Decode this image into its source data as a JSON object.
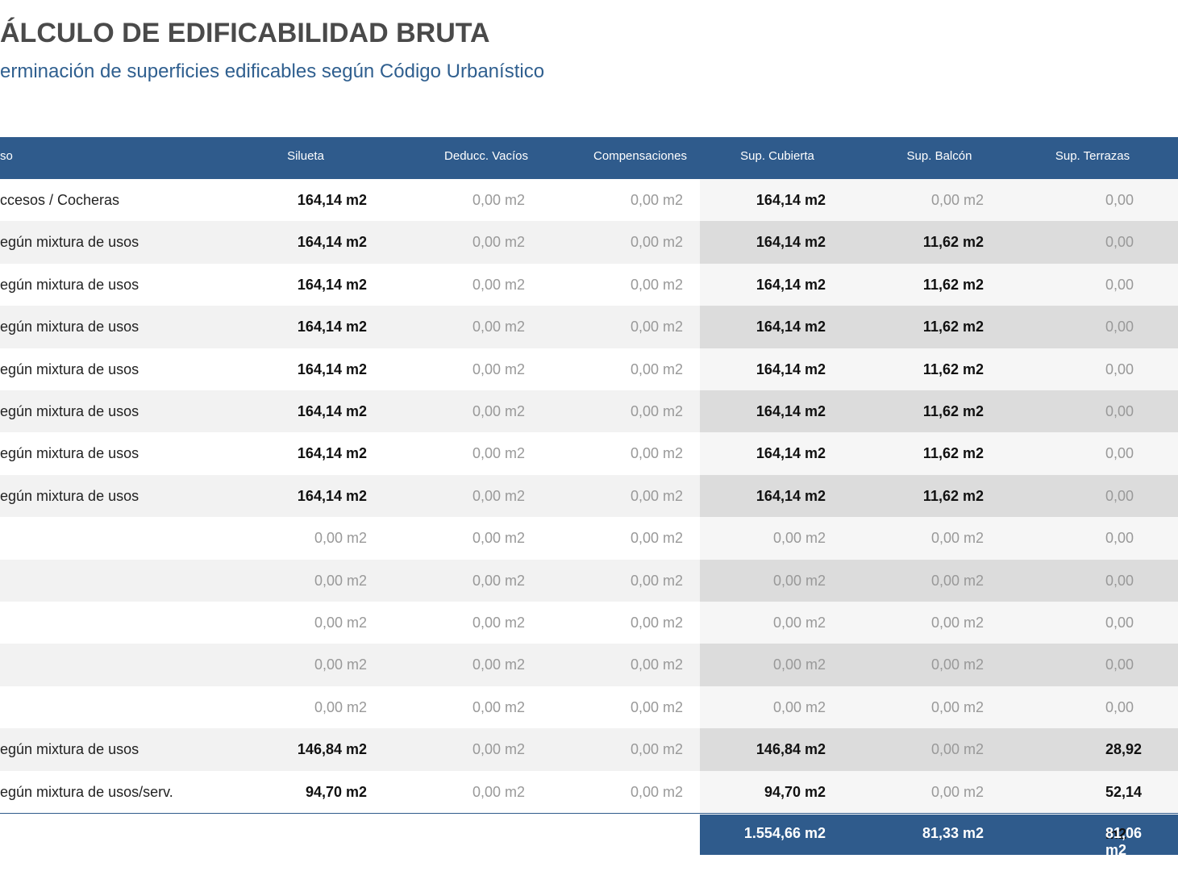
{
  "header": {
    "title": "ÁLCULO DE EDIFICABILIDAD BRUTA",
    "subtitle": "erminación de superficies edificables según Código Urbanístico"
  },
  "table": {
    "columns": [
      "so",
      "Silueta",
      "Deducc. Vacíos",
      "Compensaciones",
      "Sup. Cubierta",
      "Sup. Balcón",
      "Sup. Terrazas"
    ],
    "rows": [
      {
        "label": "ccesos / Cocheras",
        "cells": [
          "164,14 m2",
          "0,00 m2",
          "0,00 m2",
          "164,14 m2",
          "0,00 m2",
          "0,00 m2"
        ],
        "strong": [
          0,
          3
        ]
      },
      {
        "label": "egún mixtura de usos",
        "cells": [
          "164,14 m2",
          "0,00 m2",
          "0,00 m2",
          "164,14 m2",
          "11,62 m2",
          "0,00 m2"
        ],
        "strong": [
          0,
          3,
          4
        ]
      },
      {
        "label": "egún mixtura de usos",
        "cells": [
          "164,14 m2",
          "0,00 m2",
          "0,00 m2",
          "164,14 m2",
          "11,62 m2",
          "0,00 m2"
        ],
        "strong": [
          0,
          3,
          4
        ]
      },
      {
        "label": "egún mixtura de usos",
        "cells": [
          "164,14 m2",
          "0,00 m2",
          "0,00 m2",
          "164,14 m2",
          "11,62 m2",
          "0,00 m2"
        ],
        "strong": [
          0,
          3,
          4
        ]
      },
      {
        "label": "egún mixtura de usos",
        "cells": [
          "164,14 m2",
          "0,00 m2",
          "0,00 m2",
          "164,14 m2",
          "11,62 m2",
          "0,00 m2"
        ],
        "strong": [
          0,
          3,
          4
        ]
      },
      {
        "label": "egún mixtura de usos",
        "cells": [
          "164,14 m2",
          "0,00 m2",
          "0,00 m2",
          "164,14 m2",
          "11,62 m2",
          "0,00 m2"
        ],
        "strong": [
          0,
          3,
          4
        ]
      },
      {
        "label": "egún mixtura de usos",
        "cells": [
          "164,14 m2",
          "0,00 m2",
          "0,00 m2",
          "164,14 m2",
          "11,62 m2",
          "0,00 m2"
        ],
        "strong": [
          0,
          3,
          4
        ]
      },
      {
        "label": "egún mixtura de usos",
        "cells": [
          "164,14 m2",
          "0,00 m2",
          "0,00 m2",
          "164,14 m2",
          "11,62 m2",
          "0,00 m2"
        ],
        "strong": [
          0,
          3,
          4
        ]
      },
      {
        "label": null,
        "cells": [
          "0,00 m2",
          "0,00 m2",
          "0,00 m2",
          "0,00 m2",
          "0,00 m2",
          "0,00 m2"
        ],
        "strong": []
      },
      {
        "label": null,
        "cells": [
          "0,00 m2",
          "0,00 m2",
          "0,00 m2",
          "0,00 m2",
          "0,00 m2",
          "0,00 m2"
        ],
        "strong": []
      },
      {
        "label": null,
        "cells": [
          "0,00 m2",
          "0,00 m2",
          "0,00 m2",
          "0,00 m2",
          "0,00 m2",
          "0,00 m2"
        ],
        "strong": []
      },
      {
        "label": null,
        "cells": [
          "0,00 m2",
          "0,00 m2",
          "0,00 m2",
          "0,00 m2",
          "0,00 m2",
          "0,00 m2"
        ],
        "strong": []
      },
      {
        "label": null,
        "cells": [
          "0,00 m2",
          "0,00 m2",
          "0,00 m2",
          "0,00 m2",
          "0,00 m2",
          "0,00 m2"
        ],
        "strong": []
      },
      {
        "label": "egún mixtura de usos",
        "cells": [
          "146,84 m2",
          "0,00 m2",
          "0,00 m2",
          "146,84 m2",
          "0,00 m2",
          "28,92 m2"
        ],
        "strong": [
          0,
          3,
          5
        ]
      },
      {
        "label": "egún mixtura de usos/serv.",
        "cells": [
          "94,70 m2",
          "0,00 m2",
          "0,00 m2",
          "94,70 m2",
          "0,00 m2",
          "52,14 m2"
        ],
        "strong": [
          0,
          3,
          5
        ]
      }
    ],
    "totals": [
      "1.554,66 m2",
      "81,33 m2",
      "81,06 m2"
    ]
  }
}
